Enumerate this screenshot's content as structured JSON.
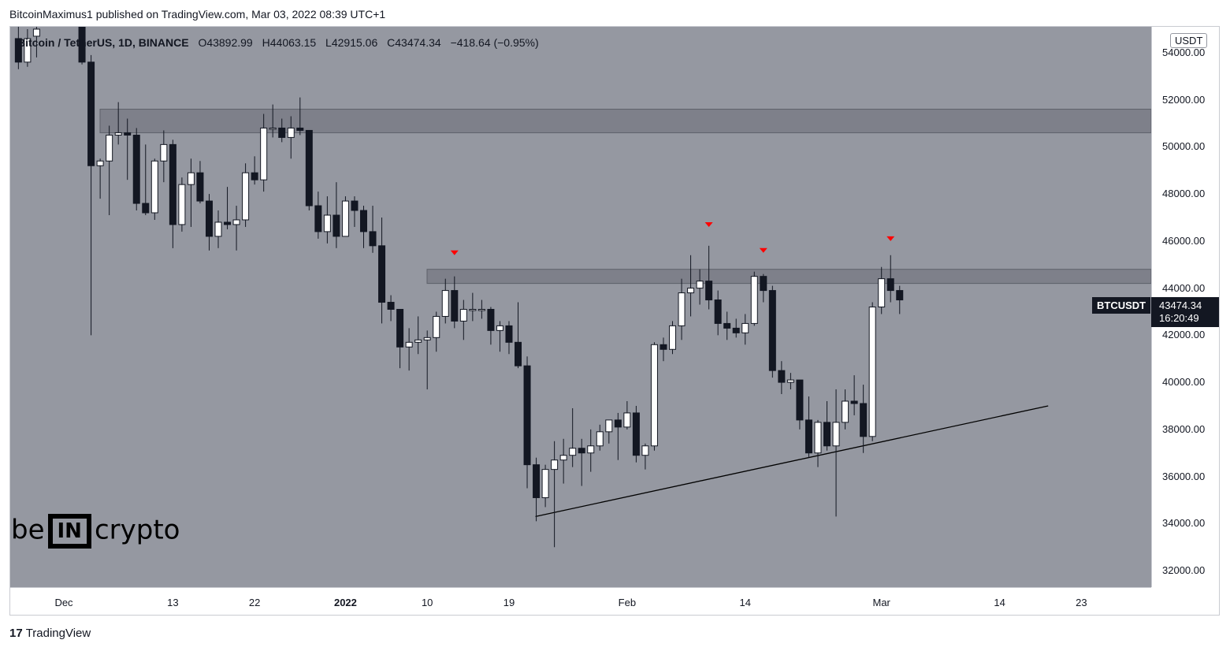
{
  "header": {
    "publish_line": "BitcoinMaximus1 published on TradingView.com, Mar 03, 2022 08:39 UTC+1"
  },
  "ohlc": {
    "symbol": "Bitcoin / TetherUS, 1D, BINANCE",
    "o_label": "O",
    "o": "43892.99",
    "h_label": "H",
    "h": "44063.15",
    "l_label": "L",
    "l": "42915.06",
    "c_label": "C",
    "c": "43474.34",
    "change": "−418.64 (−0.95%)"
  },
  "price_axis": {
    "unit": "USDT",
    "ticks": [
      "54000.00",
      "52000.00",
      "50000.00",
      "48000.00",
      "46000.00",
      "44000.00",
      "42000.00",
      "40000.00",
      "38000.00",
      "36000.00",
      "34000.00",
      "32000.00"
    ]
  },
  "time_axis": {
    "ticks": [
      {
        "label": "Dec",
        "bold": false
      },
      {
        "label": "13",
        "bold": false
      },
      {
        "label": "22",
        "bold": false
      },
      {
        "label": "2022",
        "bold": true
      },
      {
        "label": "10",
        "bold": false
      },
      {
        "label": "19",
        "bold": false
      },
      {
        "label": "Feb",
        "bold": false
      },
      {
        "label": "14",
        "bold": false
      },
      {
        "label": "Mar",
        "bold": false
      },
      {
        "label": "14",
        "bold": false
      },
      {
        "label": "23",
        "bold": false
      }
    ]
  },
  "last_price": {
    "ticker": "BTCUSDT",
    "price": "43474.34",
    "countdown": "16:20:49"
  },
  "logo": {
    "left": "be",
    "mid": "IN",
    "right": "crypto"
  },
  "footer": {
    "brand": "TradingView",
    "mark": "17"
  },
  "colors": {
    "plot_bg": "#9598a1",
    "bull": "#ffffff",
    "bear": "#131722",
    "zone": "#6b6e78",
    "marker": "#ff0000"
  },
  "chart_data": {
    "type": "candlestick",
    "title": "Bitcoin / TetherUS, 1D, BINANCE",
    "ylim": [
      31300,
      55100
    ],
    "y_unit": "USDT",
    "resistance_zones": [
      [
        50600,
        51600
      ],
      [
        44200,
        44800
      ]
    ],
    "ascending_support_line": [
      {
        "date": "2022-01-22",
        "price": 34300
      },
      {
        "date": "2022-03-19",
        "price": 39000
      }
    ],
    "top_markers": [
      {
        "date": "2022-01-13",
        "price": 45500
      },
      {
        "date": "2022-02-10",
        "price": 46700
      },
      {
        "date": "2022-02-16",
        "price": 45600
      },
      {
        "date": "2022-03-02",
        "price": 46100
      }
    ],
    "candles": [
      {
        "d": "2021-11-26",
        "o": 54600,
        "h": 55200,
        "l": 53300,
        "c": 53600
      },
      {
        "d": "2021-11-27",
        "o": 53600,
        "h": 55000,
        "l": 53400,
        "c": 54600
      },
      {
        "d": "2021-11-28",
        "o": 54700,
        "h": 56000,
        "l": 53800,
        "c": 55000
      },
      {
        "d": "2021-12-03",
        "o": 56300,
        "h": 57000,
        "l": 53500,
        "c": 53600
      },
      {
        "d": "2021-12-04",
        "o": 53600,
        "h": 53900,
        "l": 42000,
        "c": 49200
      },
      {
        "d": "2021-12-05",
        "o": 49200,
        "h": 49500,
        "l": 47800,
        "c": 49400
      },
      {
        "d": "2021-12-06",
        "o": 49400,
        "h": 50900,
        "l": 47100,
        "c": 50500
      },
      {
        "d": "2021-12-07",
        "o": 50500,
        "h": 51900,
        "l": 50100,
        "c": 50600
      },
      {
        "d": "2021-12-08",
        "o": 50600,
        "h": 51200,
        "l": 48600,
        "c": 50500
      },
      {
        "d": "2021-12-09",
        "o": 50500,
        "h": 50800,
        "l": 47300,
        "c": 47600
      },
      {
        "d": "2021-12-10",
        "o": 47600,
        "h": 50100,
        "l": 47100,
        "c": 47200
      },
      {
        "d": "2021-12-11",
        "o": 47200,
        "h": 49500,
        "l": 46900,
        "c": 49400
      },
      {
        "d": "2021-12-12",
        "o": 49400,
        "h": 50700,
        "l": 48500,
        "c": 50100
      },
      {
        "d": "2021-12-13",
        "o": 50100,
        "h": 50300,
        "l": 45700,
        "c": 46700
      },
      {
        "d": "2021-12-14",
        "o": 46700,
        "h": 48700,
        "l": 46400,
        "c": 48400
      },
      {
        "d": "2021-12-15",
        "o": 48400,
        "h": 49500,
        "l": 46600,
        "c": 48900
      },
      {
        "d": "2021-12-16",
        "o": 48900,
        "h": 49400,
        "l": 47600,
        "c": 47700
      },
      {
        "d": "2021-12-17",
        "o": 47700,
        "h": 48000,
        "l": 45600,
        "c": 46200
      },
      {
        "d": "2021-12-18",
        "o": 46200,
        "h": 47300,
        "l": 45700,
        "c": 46800
      },
      {
        "d": "2021-12-19",
        "o": 46800,
        "h": 48300,
        "l": 46500,
        "c": 46700
      },
      {
        "d": "2021-12-20",
        "o": 46700,
        "h": 47500,
        "l": 45600,
        "c": 46900
      },
      {
        "d": "2021-12-21",
        "o": 46900,
        "h": 49300,
        "l": 46600,
        "c": 48900
      },
      {
        "d": "2021-12-22",
        "o": 48900,
        "h": 49600,
        "l": 48400,
        "c": 48600
      },
      {
        "d": "2021-12-23",
        "o": 48600,
        "h": 51400,
        "l": 48100,
        "c": 50800
      },
      {
        "d": "2021-12-24",
        "o": 50800,
        "h": 51800,
        "l": 50400,
        "c": 50800
      },
      {
        "d": "2021-12-25",
        "o": 50800,
        "h": 51200,
        "l": 50200,
        "c": 50400
      },
      {
        "d": "2021-12-26",
        "o": 50400,
        "h": 51300,
        "l": 49500,
        "c": 50800
      },
      {
        "d": "2021-12-27",
        "o": 50800,
        "h": 52100,
        "l": 50500,
        "c": 50700
      },
      {
        "d": "2021-12-28",
        "o": 50700,
        "h": 50700,
        "l": 47300,
        "c": 47500
      },
      {
        "d": "2021-12-29",
        "o": 47500,
        "h": 48100,
        "l": 46100,
        "c": 46400
      },
      {
        "d": "2021-12-30",
        "o": 46400,
        "h": 47900,
        "l": 45900,
        "c": 47100
      },
      {
        "d": "2021-12-31",
        "o": 47100,
        "h": 48500,
        "l": 45700,
        "c": 46200
      },
      {
        "d": "2022-01-01",
        "o": 46200,
        "h": 47900,
        "l": 46200,
        "c": 47700
      },
      {
        "d": "2022-01-02",
        "o": 47700,
        "h": 47900,
        "l": 46600,
        "c": 47300
      },
      {
        "d": "2022-01-03",
        "o": 47300,
        "h": 47500,
        "l": 45700,
        "c": 46400
      },
      {
        "d": "2022-01-04",
        "o": 46400,
        "h": 47500,
        "l": 45500,
        "c": 45800
      },
      {
        "d": "2022-01-05",
        "o": 45800,
        "h": 47000,
        "l": 42500,
        "c": 43400
      },
      {
        "d": "2022-01-06",
        "o": 43400,
        "h": 43700,
        "l": 42600,
        "c": 43100
      },
      {
        "d": "2022-01-07",
        "o": 43100,
        "h": 43100,
        "l": 40600,
        "c": 41500
      },
      {
        "d": "2022-01-08",
        "o": 41500,
        "h": 42300,
        "l": 40500,
        "c": 41700
      },
      {
        "d": "2022-01-09",
        "o": 41700,
        "h": 42800,
        "l": 41200,
        "c": 41800
      },
      {
        "d": "2022-01-10",
        "o": 41800,
        "h": 42200,
        "l": 39700,
        "c": 41900
      },
      {
        "d": "2022-01-11",
        "o": 41900,
        "h": 43000,
        "l": 41300,
        "c": 42800
      },
      {
        "d": "2022-01-12",
        "o": 42800,
        "h": 44400,
        "l": 42500,
        "c": 43900
      },
      {
        "d": "2022-01-13",
        "o": 43900,
        "h": 44500,
        "l": 42300,
        "c": 42600
      },
      {
        "d": "2022-01-14",
        "o": 42600,
        "h": 43500,
        "l": 41800,
        "c": 43100
      },
      {
        "d": "2022-01-15",
        "o": 43100,
        "h": 43800,
        "l": 42600,
        "c": 43100
      },
      {
        "d": "2022-01-16",
        "o": 43100,
        "h": 43500,
        "l": 42700,
        "c": 43100
      },
      {
        "d": "2022-01-17",
        "o": 43100,
        "h": 43200,
        "l": 41600,
        "c": 42200
      },
      {
        "d": "2022-01-18",
        "o": 42200,
        "h": 42600,
        "l": 41300,
        "c": 42400
      },
      {
        "d": "2022-01-19",
        "o": 42400,
        "h": 42600,
        "l": 41200,
        "c": 41700
      },
      {
        "d": "2022-01-20",
        "o": 41700,
        "h": 43400,
        "l": 40600,
        "c": 40700
      },
      {
        "d": "2022-01-21",
        "o": 40700,
        "h": 41100,
        "l": 35500,
        "c": 36500
      },
      {
        "d": "2022-01-22",
        "o": 36500,
        "h": 36800,
        "l": 34100,
        "c": 35100
      },
      {
        "d": "2022-01-23",
        "o": 35100,
        "h": 36500,
        "l": 34700,
        "c": 36300
      },
      {
        "d": "2022-01-24",
        "o": 36300,
        "h": 37500,
        "l": 33000,
        "c": 36700
      },
      {
        "d": "2022-01-25",
        "o": 36700,
        "h": 37600,
        "l": 35700,
        "c": 36900
      },
      {
        "d": "2022-01-26",
        "o": 36900,
        "h": 38900,
        "l": 36400,
        "c": 37200
      },
      {
        "d": "2022-01-27",
        "o": 37200,
        "h": 37600,
        "l": 35600,
        "c": 37000
      },
      {
        "d": "2022-01-28",
        "o": 37000,
        "h": 38000,
        "l": 36200,
        "c": 37300
      },
      {
        "d": "2022-01-29",
        "o": 37300,
        "h": 38200,
        "l": 37100,
        "c": 37900
      },
      {
        "d": "2022-01-30",
        "o": 37900,
        "h": 38400,
        "l": 37400,
        "c": 38400
      },
      {
        "d": "2022-01-31",
        "o": 38400,
        "h": 38700,
        "l": 36700,
        "c": 38100
      },
      {
        "d": "2022-02-01",
        "o": 38100,
        "h": 39200,
        "l": 38000,
        "c": 38700
      },
      {
        "d": "2022-02-02",
        "o": 38700,
        "h": 39000,
        "l": 36600,
        "c": 36900
      },
      {
        "d": "2022-02-03",
        "o": 36900,
        "h": 37400,
        "l": 36300,
        "c": 37300
      },
      {
        "d": "2022-02-04",
        "o": 37300,
        "h": 41700,
        "l": 37100,
        "c": 41600
      },
      {
        "d": "2022-02-05",
        "o": 41600,
        "h": 41900,
        "l": 40900,
        "c": 41400
      },
      {
        "d": "2022-02-06",
        "o": 41400,
        "h": 42600,
        "l": 41200,
        "c": 42400
      },
      {
        "d": "2022-02-07",
        "o": 42400,
        "h": 44400,
        "l": 41800,
        "c": 43800
      },
      {
        "d": "2022-02-08",
        "o": 43800,
        "h": 45400,
        "l": 42800,
        "c": 44000
      },
      {
        "d": "2022-02-09",
        "o": 44000,
        "h": 44800,
        "l": 43300,
        "c": 44300
      },
      {
        "d": "2022-02-10",
        "o": 44300,
        "h": 45800,
        "l": 43100,
        "c": 43500
      },
      {
        "d": "2022-02-11",
        "o": 43500,
        "h": 43900,
        "l": 42000,
        "c": 42500
      },
      {
        "d": "2022-02-12",
        "o": 42500,
        "h": 43000,
        "l": 41800,
        "c": 42300
      },
      {
        "d": "2022-02-13",
        "o": 42300,
        "h": 42700,
        "l": 41900,
        "c": 42100
      },
      {
        "d": "2022-02-14",
        "o": 42100,
        "h": 42900,
        "l": 41600,
        "c": 42500
      },
      {
        "d": "2022-02-15",
        "o": 42500,
        "h": 44700,
        "l": 42400,
        "c": 44500
      },
      {
        "d": "2022-02-16",
        "o": 44500,
        "h": 44600,
        "l": 43400,
        "c": 43900
      },
      {
        "d": "2022-02-17",
        "o": 43900,
        "h": 44100,
        "l": 40200,
        "c": 40500
      },
      {
        "d": "2022-02-18",
        "o": 40500,
        "h": 40900,
        "l": 39500,
        "c": 40000
      },
      {
        "d": "2022-02-19",
        "o": 40000,
        "h": 40400,
        "l": 39700,
        "c": 40100
      },
      {
        "d": "2022-02-20",
        "o": 40100,
        "h": 40100,
        "l": 38000,
        "c": 38400
      },
      {
        "d": "2022-02-21",
        "o": 38400,
        "h": 39400,
        "l": 36800,
        "c": 37000
      },
      {
        "d": "2022-02-22",
        "o": 37000,
        "h": 38400,
        "l": 36400,
        "c": 38300
      },
      {
        "d": "2022-02-23",
        "o": 38300,
        "h": 39200,
        "l": 37100,
        "c": 37300
      },
      {
        "d": "2022-02-24",
        "o": 37300,
        "h": 39700,
        "l": 34300,
        "c": 38300
      },
      {
        "d": "2022-02-25",
        "o": 38300,
        "h": 39700,
        "l": 38000,
        "c": 39200
      },
      {
        "d": "2022-02-26",
        "o": 39200,
        "h": 40300,
        "l": 38600,
        "c": 39100
      },
      {
        "d": "2022-02-27",
        "o": 39100,
        "h": 39900,
        "l": 37000,
        "c": 37700
      },
      {
        "d": "2022-02-28",
        "o": 37700,
        "h": 43400,
        "l": 37500,
        "c": 43200
      },
      {
        "d": "2022-03-01",
        "o": 43200,
        "h": 44900,
        "l": 42900,
        "c": 44400
      },
      {
        "d": "2022-03-02",
        "o": 44400,
        "h": 45400,
        "l": 43400,
        "c": 43900
      },
      {
        "d": "2022-03-03",
        "o": 43900,
        "h": 44100,
        "l": 42900,
        "c": 43500
      }
    ]
  }
}
